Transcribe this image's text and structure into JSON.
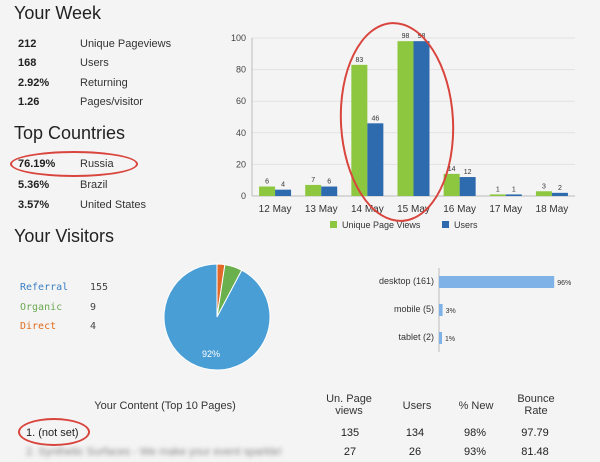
{
  "week": {
    "title": "Your Week",
    "stats": [
      {
        "value": "212",
        "label": "Unique Pageviews"
      },
      {
        "value": "168",
        "label": "Users"
      },
      {
        "value": "2.92%",
        "label": "Returning"
      },
      {
        "value": "1.26",
        "label": "Pages/visitor"
      }
    ]
  },
  "countries": {
    "title": "Top Countries",
    "items": [
      {
        "value": "76.19%",
        "label": "Russia"
      },
      {
        "value": "5.36%",
        "label": "Brazil"
      },
      {
        "value": "3.57%",
        "label": "United States"
      }
    ]
  },
  "visitors": {
    "title": "Your Visitors",
    "sources": [
      {
        "name": "Referral",
        "count": "155",
        "color": "#3b7fc4"
      },
      {
        "name": "Organic",
        "count": "9",
        "color": "#6aa84f"
      },
      {
        "name": "Direct",
        "count": "4",
        "color": "#e06a1b"
      }
    ]
  },
  "colors": {
    "green": "#8dc63f",
    "blue": "#2e6aae",
    "pie_blue": "#4a9ed6",
    "pie_green": "#6ab04c",
    "pie_orange": "#e0692a",
    "oval": "#d9443d"
  },
  "chart_data": [
    {
      "type": "bar",
      "categories": [
        "12 May",
        "13 May",
        "14 May",
        "15 May",
        "16 May",
        "17 May",
        "18 May"
      ],
      "series": [
        {
          "name": "Unique Page Views",
          "values": [
            6,
            7,
            83,
            98,
            14,
            1,
            3
          ]
        },
        {
          "name": "Users",
          "values": [
            4,
            6,
            46,
            98,
            12,
            1,
            2
          ]
        }
      ],
      "ylim": [
        0,
        100
      ],
      "yticks": [
        0,
        20,
        40,
        60,
        80,
        100
      ],
      "grid": true,
      "legend": "bottom"
    },
    {
      "type": "pie",
      "categories": [
        "Referral",
        "Organic",
        "Direct"
      ],
      "values": [
        155,
        9,
        4
      ],
      "slice_labels": [
        "92%"
      ]
    },
    {
      "type": "bar",
      "orientation": "horizontal",
      "categories": [
        "desktop (161)",
        "mobile (5)",
        "tablet (2)"
      ],
      "values": [
        96,
        3,
        1
      ],
      "value_labels": [
        "96%",
        "3%",
        "1%"
      ],
      "xlim": [
        0,
        100
      ]
    }
  ],
  "content": {
    "headers": [
      "Your Content (Top 10 Pages)",
      "Un. Page views",
      "Users",
      "% New",
      "Bounce Rate"
    ],
    "rows": [
      {
        "page": "1. (not set)",
        "views": "135",
        "users": "134",
        "new": "98%",
        "bounce": "97.79"
      },
      {
        "page": "2. Synthetic Surfaces - We make your event sparkle!",
        "views": "27",
        "users": "26",
        "new": "93%",
        "bounce": "81.48"
      }
    ]
  }
}
